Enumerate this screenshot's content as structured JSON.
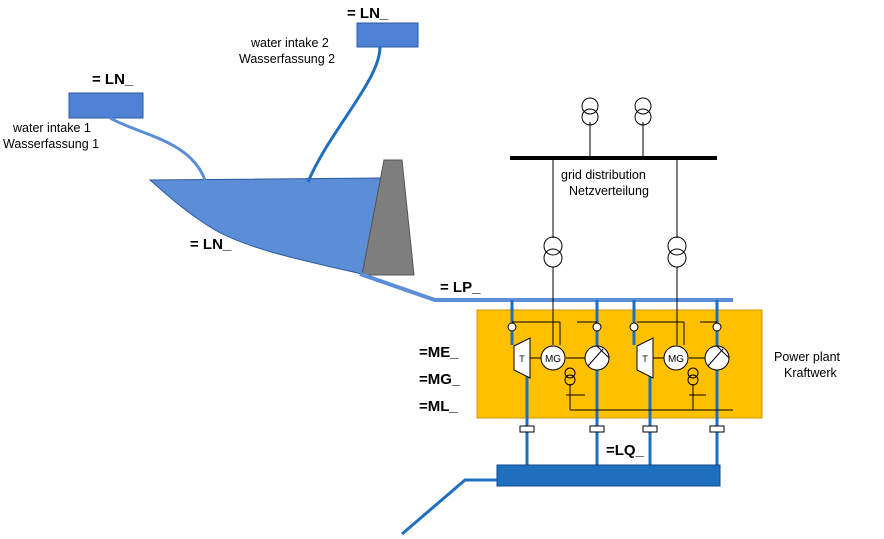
{
  "labels": {
    "ln_intake2": "= LN_",
    "ln_intake1": "= LN_",
    "ln_reservoir": "= LN_",
    "lp": "= LP_",
    "lq": "=LQ_",
    "me": "=ME_",
    "mg": "=MG_",
    "ml": "=ML_",
    "intake2_en": "water intake 2",
    "intake2_de": "Wasserfassung  2",
    "intake1_en": "water intake 1",
    "intake1_de": "Wasserfassung 1",
    "grid_en": "grid distribution",
    "grid_de": "Netzverteilung",
    "plant_en": "Power plant",
    "plant_de": "Kraftwerk",
    "mg_unit1": "MG",
    "mg_unit2": "MG",
    "turbine1": "T",
    "turbine2": "T"
  },
  "colors": {
    "water": "#5b8ed6",
    "pipe": "#1f6fbf",
    "plant": "#ffc000",
    "dam": "#7f7f7f",
    "lower_basin": "#1f6fbf"
  }
}
